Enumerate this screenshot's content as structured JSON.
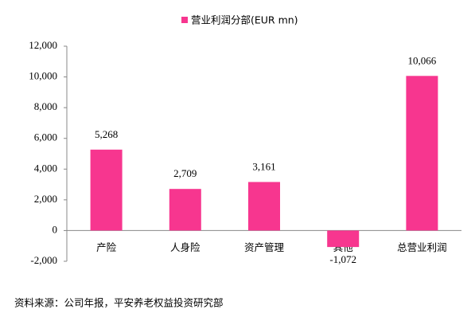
{
  "chart_data": {
    "type": "bar",
    "legend_label": "营业利润分部(EUR mn)",
    "categories": [
      "产险",
      "人身险",
      "资产管理",
      "其他",
      "总营业利润"
    ],
    "values": [
      5268,
      2709,
      3161,
      -1072,
      10066
    ],
    "value_labels": [
      "5,268",
      "2,709",
      "3,161",
      "-1,072",
      "10,066"
    ],
    "color": "#f7368f",
    "ylim": [
      -2000,
      12000
    ],
    "yticks": [
      {
        "value": -2000,
        "label": "-2,000"
      },
      0,
      {
        "value": 2000,
        "label": "2,000"
      },
      {
        "value": 4000,
        "label": "4,000"
      },
      {
        "value": 6000,
        "label": "6,000"
      },
      {
        "value": 8000,
        "label": "8,000"
      },
      {
        "value": 10000,
        "label": "10,000"
      },
      {
        "value": 12000,
        "label": "12,000"
      }
    ],
    "grid": false,
    "legend": "top",
    "source": "资料来源：公司年报，平安养老权益投资研究部"
  }
}
